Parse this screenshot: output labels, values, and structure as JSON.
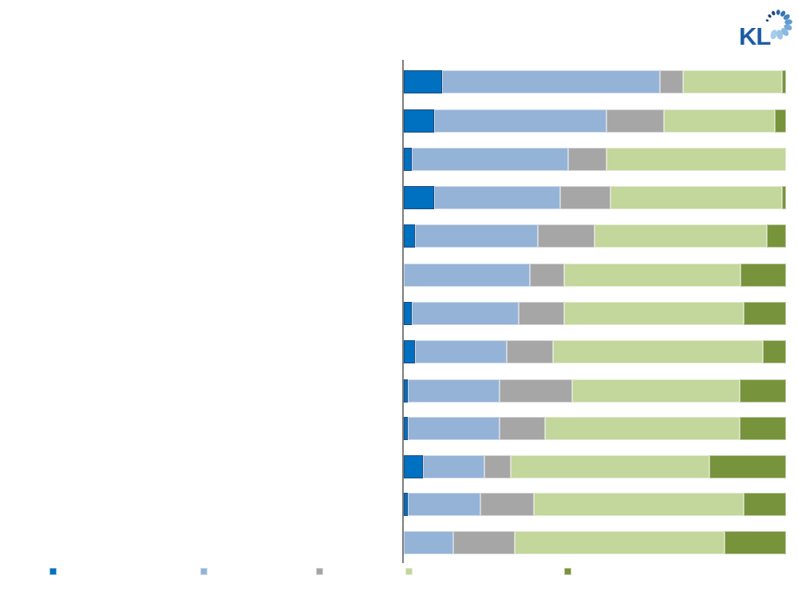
{
  "logo": {
    "text": "KL"
  },
  "chart_data": {
    "type": "bar",
    "orientation": "horizontal",
    "stacked": true,
    "unit": "percent",
    "title": "",
    "xlabel": "",
    "ylabel": "",
    "xlim": [
      0,
      100
    ],
    "grid": false,
    "legend_position": "bottom",
    "axis_color": "#7d7d7d",
    "categories": [
      "",
      "",
      "",
      "",
      "",
      "",
      "",
      "",
      "",
      "",
      "",
      "",
      ""
    ],
    "series": [
      {
        "label": "",
        "color_name": "dark-blue",
        "color": "#0070C0",
        "values": [
          10,
          8,
          2,
          8,
          3,
          0,
          2,
          3,
          1,
          1,
          5,
          1,
          0
        ]
      },
      {
        "label": "",
        "color_name": "light-blue",
        "color": "#95B3D7",
        "values": [
          57,
          45,
          41,
          33,
          32,
          33,
          28,
          24,
          24,
          24,
          16,
          19,
          13
        ]
      },
      {
        "label": "",
        "color_name": "gray",
        "color": "#A6A6A6",
        "values": [
          6,
          15,
          10,
          13,
          15,
          9,
          12,
          12,
          19,
          12,
          7,
          14,
          16
        ]
      },
      {
        "label": "",
        "color_name": "light-green",
        "color": "#C3D69B",
        "values": [
          26,
          29,
          47,
          45,
          45,
          46,
          47,
          55,
          44,
          51,
          52,
          55,
          55
        ]
      },
      {
        "label": "",
        "color_name": "dark-green",
        "color": "#77933C",
        "values": [
          1,
          3,
          0,
          1,
          5,
          12,
          11,
          6,
          12,
          12,
          20,
          11,
          16
        ]
      }
    ]
  },
  "legend": {
    "items": [
      {
        "label": "",
        "color": "#0070C0"
      },
      {
        "label": "",
        "color": "#95B3D7"
      },
      {
        "label": "",
        "color": "#A6A6A6"
      },
      {
        "label": "",
        "color": "#C3D69B"
      },
      {
        "label": "",
        "color": "#77933C"
      }
    ]
  }
}
